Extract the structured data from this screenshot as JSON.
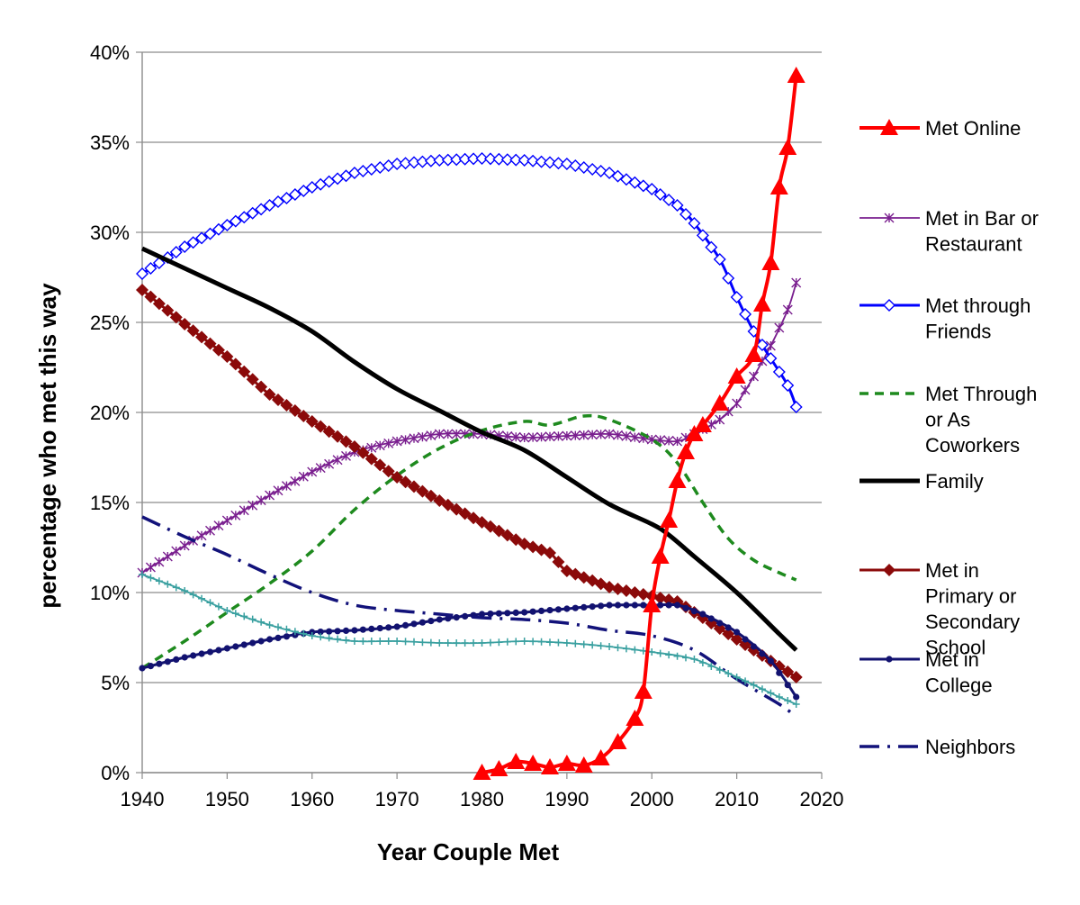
{
  "chart_data": {
    "type": "line",
    "title": "",
    "xlabel": "Year Couple Met",
    "ylabel": "percentage who met this way",
    "xlim": [
      1940,
      2020
    ],
    "ylim": [
      0,
      40
    ],
    "x_ticks": [
      "1940",
      "1950",
      "1960",
      "1970",
      "1980",
      "1990",
      "2000",
      "2010",
      "2020"
    ],
    "y_ticks": [
      "0%",
      "5%",
      "10%",
      "15%",
      "20%",
      "25%",
      "30%",
      "35%",
      "40%"
    ],
    "grid": "horizontal",
    "legend_position": "right",
    "series": [
      {
        "name": "Met Online",
        "legend_lines": [
          "Met Online"
        ],
        "color": "#ff0000",
        "dash": "solid",
        "marker": "triangle",
        "x": [
          1980,
          1982,
          1984,
          1986,
          1988,
          1990,
          1992,
          1994,
          1996,
          1998,
          1999,
          2000,
          2001,
          2002,
          2003,
          2004,
          2005,
          2006,
          2008,
          2010,
          2012,
          2013,
          2014,
          2015,
          2016,
          2017
        ],
        "y": [
          0,
          0.2,
          0.6,
          0.5,
          0.3,
          0.5,
          0.4,
          0.8,
          1.7,
          3.0,
          4.5,
          9.3,
          12.0,
          14.0,
          16.2,
          17.8,
          18.8,
          19.3,
          20.5,
          22.0,
          23.2,
          26.0,
          28.3,
          32.5,
          34.7,
          38.7
        ]
      },
      {
        "name": "Met in Bar or Restaurant",
        "legend_lines": [
          "Met in Bar or",
          "Restaurant"
        ],
        "color": "#7a1f8f",
        "dash": "solid",
        "marker": "asterisk",
        "x": [
          1940,
          1945,
          1950,
          1955,
          1960,
          1965,
          1970,
          1975,
          1980,
          1985,
          1990,
          1995,
          2000,
          2003,
          2005,
          2008,
          2010,
          2012,
          2014,
          2016,
          2017
        ],
        "y": [
          11.1,
          12.6,
          14.0,
          15.4,
          16.7,
          17.8,
          18.4,
          18.8,
          18.8,
          18.6,
          18.7,
          18.8,
          18.5,
          18.4,
          18.8,
          19.6,
          20.5,
          22.0,
          23.7,
          25.7,
          27.2
        ]
      },
      {
        "name": "Met through Friends",
        "legend_lines": [
          "Met through",
          "Friends"
        ],
        "color": "#0000ff",
        "dash": "solid",
        "marker": "diamond-open",
        "x": [
          1940,
          1945,
          1950,
          1955,
          1960,
          1965,
          1970,
          1975,
          1980,
          1985,
          1990,
          1995,
          2000,
          2003,
          2005,
          2008,
          2010,
          2012,
          2014,
          2016,
          2017
        ],
        "y": [
          27.7,
          29.2,
          30.4,
          31.5,
          32.5,
          33.3,
          33.8,
          34.0,
          34.1,
          34.0,
          33.8,
          33.3,
          32.4,
          31.5,
          30.5,
          28.5,
          26.4,
          24.5,
          23.0,
          21.5,
          20.3
        ]
      },
      {
        "name": "Met Through or As Coworkers",
        "legend_lines": [
          "Met Through",
          "or As",
          "Coworkers"
        ],
        "color": "#1e8a1e",
        "dash": "dashed",
        "marker": "none",
        "x": [
          1940,
          1945,
          1950,
          1955,
          1960,
          1965,
          1970,
          1975,
          1980,
          1985,
          1988,
          1992,
          1995,
          2000,
          2003,
          2006,
          2009,
          2012,
          2015,
          2017
        ],
        "y": [
          5.8,
          7.3,
          8.9,
          10.5,
          12.3,
          14.6,
          16.5,
          18.0,
          19.0,
          19.5,
          19.3,
          19.8,
          19.6,
          18.5,
          17.2,
          15.0,
          13.0,
          11.8,
          11.1,
          10.7
        ]
      },
      {
        "name": "Family",
        "legend_lines": [
          "Family"
        ],
        "color": "#000000",
        "dash": "solid",
        "marker": "none",
        "x": [
          1940,
          1945,
          1950,
          1955,
          1960,
          1965,
          1970,
          1975,
          1980,
          1985,
          1990,
          1995,
          2000,
          2002,
          2005,
          2010,
          2015,
          2017
        ],
        "y": [
          29.1,
          28.0,
          26.9,
          25.8,
          24.5,
          22.8,
          21.3,
          20.1,
          18.9,
          17.9,
          16.4,
          14.9,
          13.8,
          13.2,
          12.0,
          10.0,
          7.7,
          6.8
        ]
      },
      {
        "name": "Met in Primary or Secondary School",
        "legend_lines": [
          "Met in",
          "Primary or",
          "Secondary",
          "School"
        ],
        "color": "#8b0a0a",
        "dash": "solid",
        "marker": "diamond-filled",
        "x": [
          1940,
          1945,
          1950,
          1955,
          1960,
          1965,
          1970,
          1975,
          1980,
          1985,
          1988,
          1990,
          1995,
          2000,
          2003,
          2006,
          2010,
          2014,
          2017
        ],
        "y": [
          26.8,
          24.9,
          23.1,
          21.0,
          19.5,
          18.1,
          16.4,
          15.1,
          13.9,
          12.7,
          12.2,
          11.2,
          10.3,
          9.8,
          9.5,
          8.6,
          7.4,
          6.2,
          5.3
        ]
      },
      {
        "name": "Met in College",
        "legend_lines": [
          "Met in",
          "College"
        ],
        "color": "#121270",
        "dash": "solid",
        "marker": "dot",
        "x": [
          1940,
          1945,
          1950,
          1955,
          1960,
          1965,
          1970,
          1975,
          1980,
          1985,
          1990,
          1995,
          2000,
          2003,
          2006,
          2010,
          2014,
          2017
        ],
        "y": [
          5.8,
          6.4,
          6.9,
          7.4,
          7.8,
          7.9,
          8.1,
          8.5,
          8.8,
          8.9,
          9.1,
          9.3,
          9.3,
          9.3,
          8.8,
          7.8,
          6.2,
          4.2
        ]
      },
      {
        "name": "Neighbors",
        "legend_lines": [
          "Neighbors"
        ],
        "color": "#12127a",
        "dash": "dashdot",
        "marker": "none",
        "x": [
          1940,
          1945,
          1950,
          1955,
          1960,
          1965,
          1970,
          1975,
          1980,
          1985,
          1990,
          1995,
          2000,
          2005,
          2010,
          2015,
          2017
        ],
        "y": [
          14.2,
          13.1,
          12.1,
          11.0,
          10.0,
          9.3,
          9.0,
          8.8,
          8.6,
          8.5,
          8.3,
          7.9,
          7.6,
          6.8,
          5.2,
          3.8,
          3.1
        ]
      },
      {
        "name": "Unlabeled teal series",
        "legend_lines": [],
        "color": "#3aa0a0",
        "dash": "solid",
        "marker": "plus",
        "x": [
          1940,
          1945,
          1950,
          1955,
          1960,
          1965,
          1970,
          1975,
          1980,
          1985,
          1990,
          1995,
          2000,
          2005,
          2010,
          2015,
          2017
        ],
        "y": [
          11.0,
          10.1,
          9.0,
          8.2,
          7.6,
          7.3,
          7.3,
          7.2,
          7.2,
          7.3,
          7.2,
          7.0,
          6.7,
          6.3,
          5.3,
          4.2,
          3.8
        ]
      }
    ]
  }
}
